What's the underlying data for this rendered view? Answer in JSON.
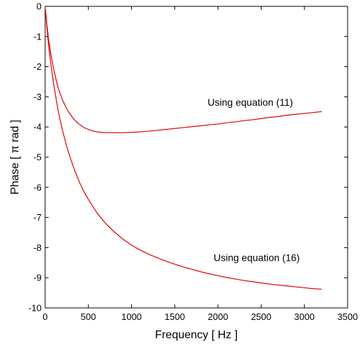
{
  "chart_data": {
    "type": "line",
    "title": "",
    "xlabel": "Frequency [ Hz ]",
    "ylabel": "Phase [ π rad ]",
    "xlim": [
      0,
      3500
    ],
    "ylim": [
      -10,
      0
    ],
    "xticks": [
      0,
      500,
      1000,
      1500,
      2000,
      2500,
      3000,
      3500
    ],
    "yticks": [
      0,
      -1,
      -2,
      -3,
      -4,
      -5,
      -6,
      -7,
      -8,
      -9,
      -10
    ],
    "grid": false,
    "line_color": "#e00000",
    "series": [
      {
        "x": [
          0,
          20,
          40,
          70,
          100,
          150,
          200,
          250,
          300,
          350,
          400,
          450,
          500,
          550,
          600,
          650,
          700,
          750,
          800,
          900,
          1000,
          1100,
          1200,
          1300,
          1400,
          1500,
          1600,
          1700,
          1800,
          1900,
          2000,
          2100,
          2200,
          2300,
          2400,
          2500,
          2600,
          2700,
          2800,
          2900,
          3000,
          3100,
          3200
        ],
        "values": [
          0,
          -0.6,
          -1.1,
          -1.65,
          -2.1,
          -2.7,
          -3.1,
          -3.4,
          -3.62,
          -3.8,
          -3.92,
          -4.02,
          -4.08,
          -4.13,
          -4.16,
          -4.18,
          -4.19,
          -4.19,
          -4.19,
          -4.19,
          -4.18,
          -4.16,
          -4.14,
          -4.11,
          -4.08,
          -4.05,
          -4.02,
          -3.99,
          -3.96,
          -3.93,
          -3.9,
          -3.86,
          -3.83,
          -3.79,
          -3.76,
          -3.72,
          -3.68,
          -3.65,
          -3.61,
          -3.58,
          -3.55,
          -3.52,
          -3.49
        ]
      },
      {
        "x": [
          0,
          20,
          40,
          70,
          100,
          150,
          200,
          250,
          300,
          350,
          400,
          450,
          500,
          600,
          700,
          800,
          900,
          1000,
          1100,
          1200,
          1300,
          1400,
          1500,
          1600,
          1700,
          1800,
          1900,
          2000,
          2100,
          2200,
          2300,
          2400,
          2500,
          2600,
          2700,
          2800,
          2900,
          3000,
          3100,
          3200
        ],
        "values": [
          0,
          -0.7,
          -1.3,
          -2.0,
          -2.6,
          -3.45,
          -4.1,
          -4.65,
          -5.1,
          -5.5,
          -5.85,
          -6.15,
          -6.4,
          -6.85,
          -7.2,
          -7.48,
          -7.72,
          -7.92,
          -8.08,
          -8.22,
          -8.34,
          -8.45,
          -8.55,
          -8.64,
          -8.72,
          -8.8,
          -8.87,
          -8.93,
          -8.99,
          -9.04,
          -9.09,
          -9.13,
          -9.17,
          -9.21,
          -9.24,
          -9.27,
          -9.3,
          -9.33,
          -9.36,
          -9.38
        ]
      }
    ],
    "annotations": [
      {
        "text": "Using equation (11)",
        "x": 1880,
        "y": -3.3
      },
      {
        "text": "Using equation (16)",
        "x": 1950,
        "y": -8.45
      }
    ]
  }
}
